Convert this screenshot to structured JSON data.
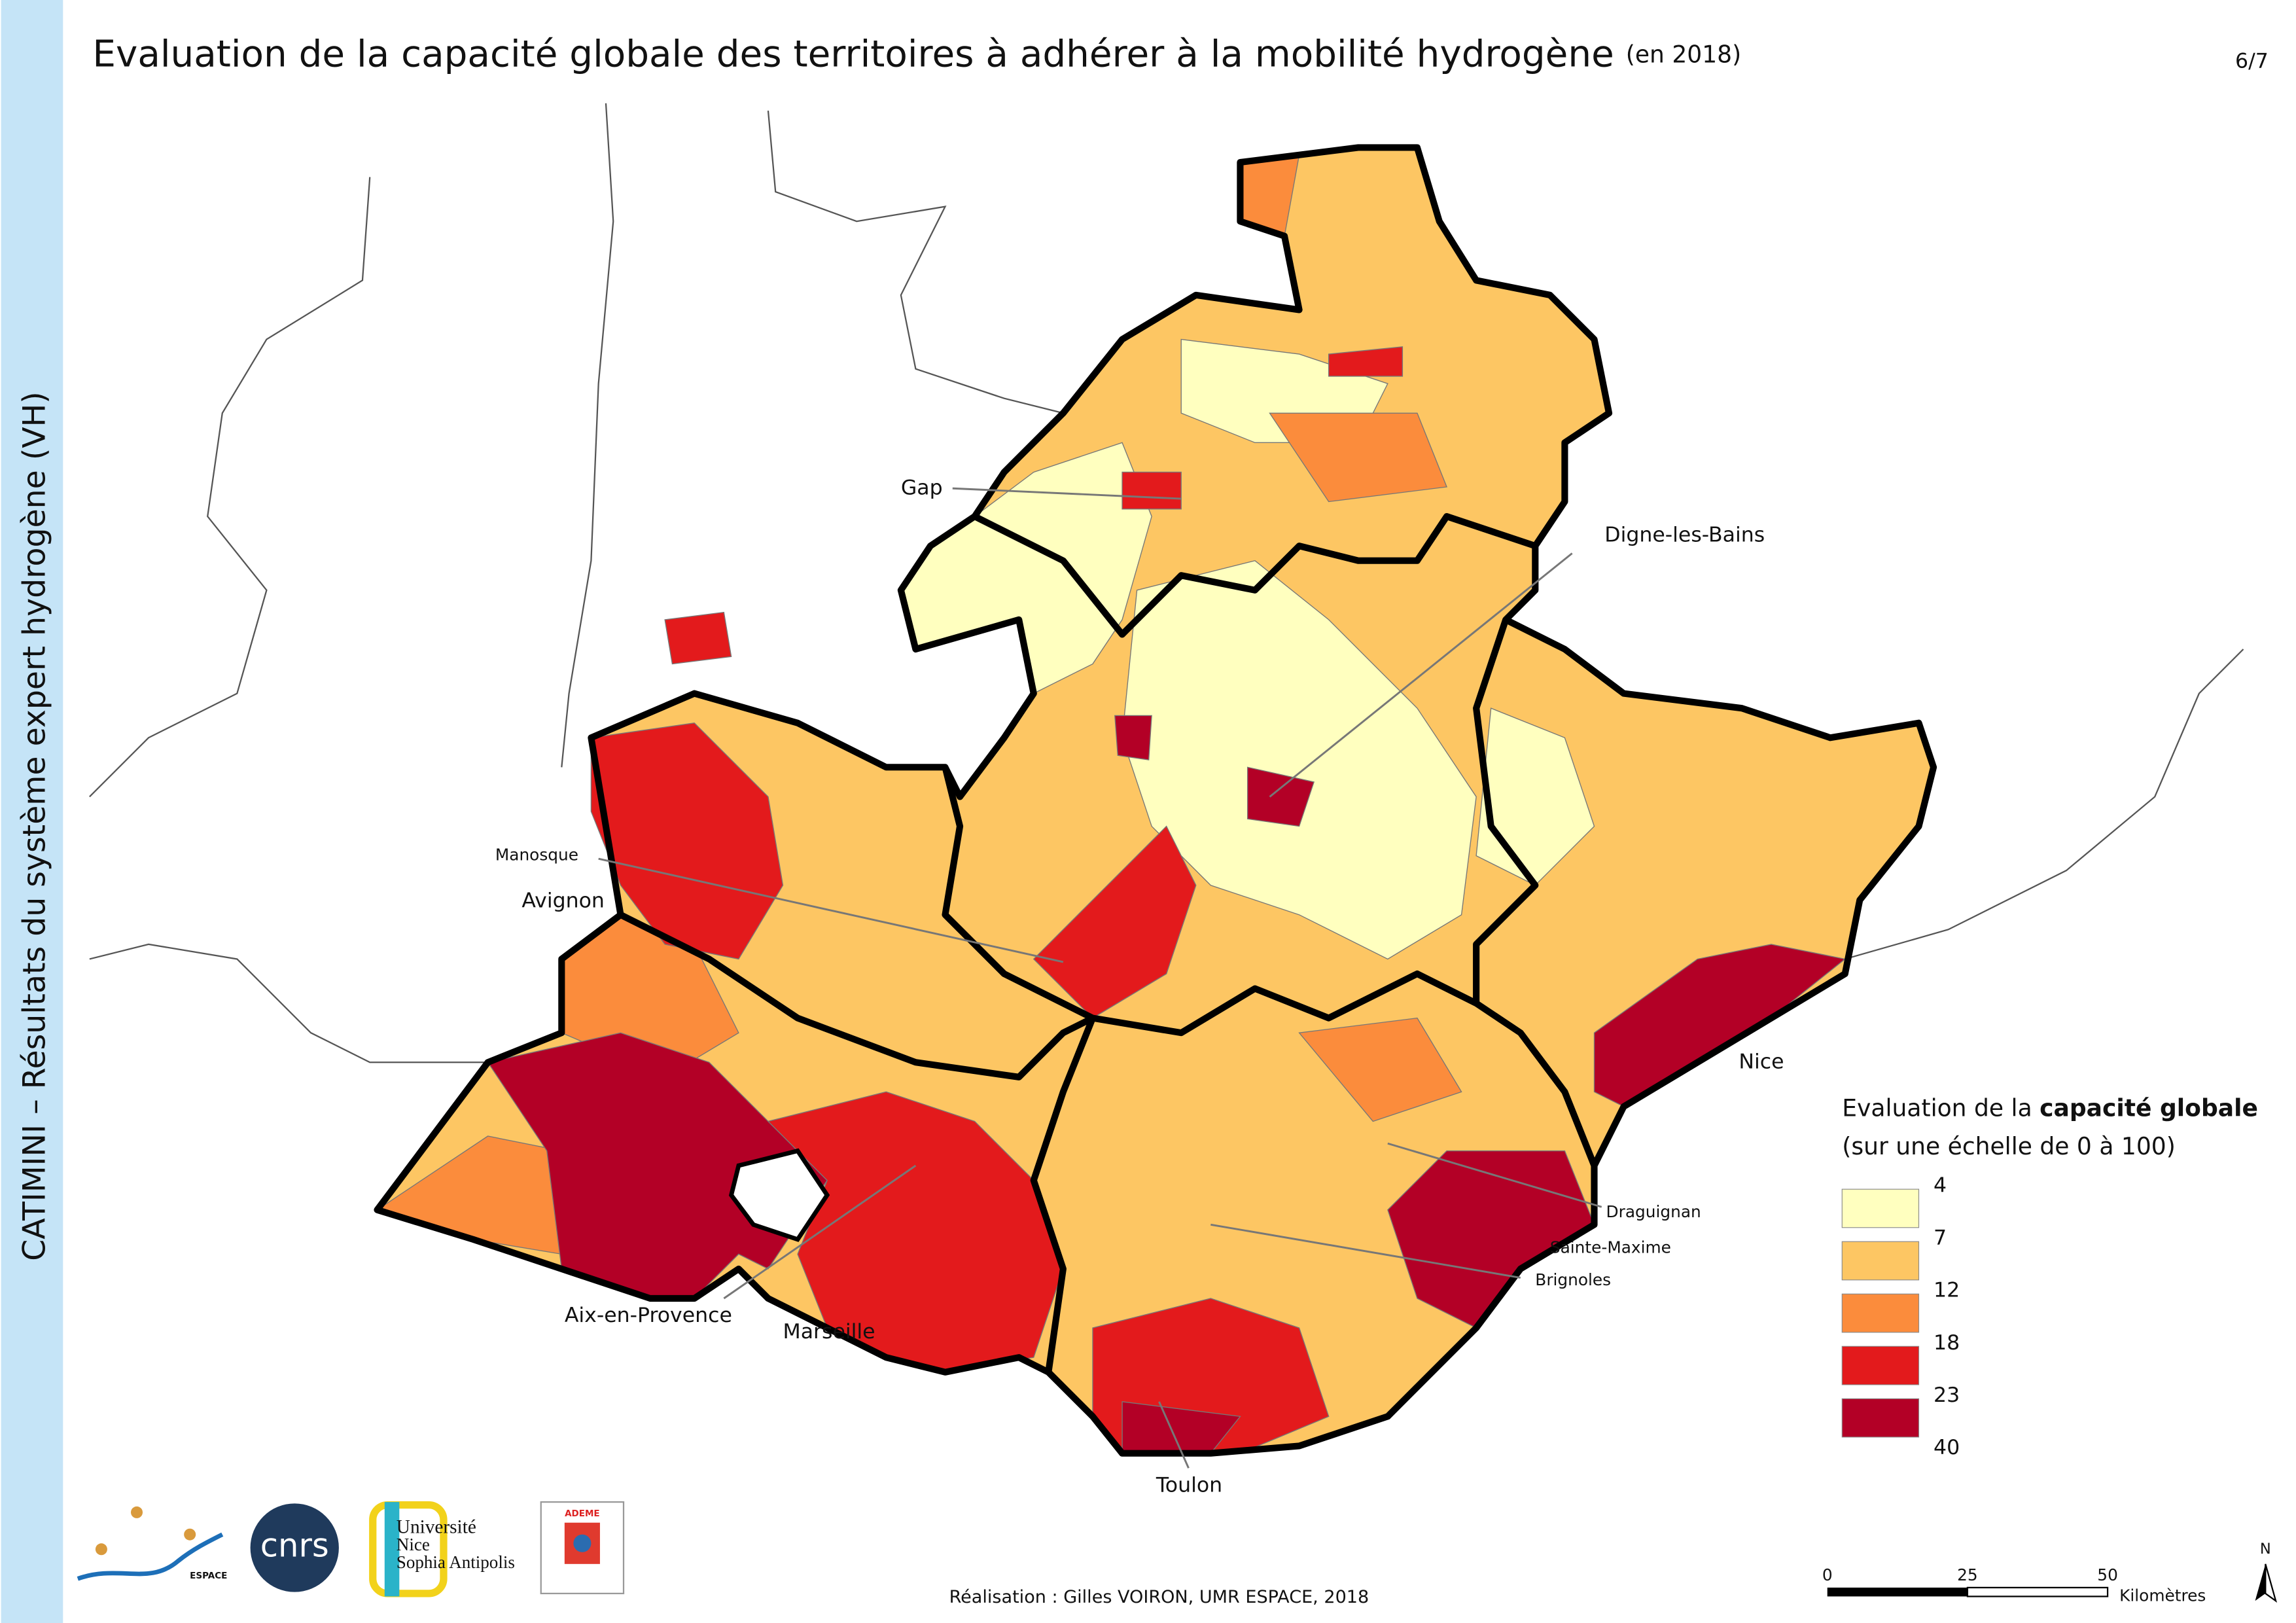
{
  "header": {
    "title": "Evaluation de la capacité globale des territoires à adhérer à la mobilité hydrogène",
    "title_note": "(en 2018)",
    "page": "6/7"
  },
  "sidebar": "CATIMINI – Résultats du système expert hydrogène (VH)",
  "map": {
    "cities": [
      "Gap",
      "Digne-les-Bains",
      "Manosque",
      "Avignon",
      "Nice",
      "Draguignan",
      "Sainte-Maxime",
      "Brignoles",
      "Aix-en-Provence",
      "Marseille",
      "Toulon"
    ]
  },
  "legend": {
    "title_start": "Evaluation de la ",
    "title_bold": "capacité globale",
    "subtitle": "(sur une échelle de 0 à 100)",
    "breaks": [
      4,
      7,
      12,
      18,
      23,
      40
    ],
    "colors": [
      "#ffffbf",
      "#fdc663",
      "#fb8c3c",
      "#e31a1c",
      "#b30026"
    ]
  },
  "scale_bar": {
    "ticks": [
      0,
      25,
      50
    ],
    "unit": "Kilomètres"
  },
  "north": "N",
  "footer": {
    "credit": "Réalisation : Gilles VOIRON, UMR ESPACE, 2018"
  },
  "logos": {
    "espace": "ESPACE",
    "cnrs": "cnrs",
    "universite": [
      "Université",
      "Nice",
      "Sophia Antipolis"
    ],
    "ademe": "ADEME"
  }
}
